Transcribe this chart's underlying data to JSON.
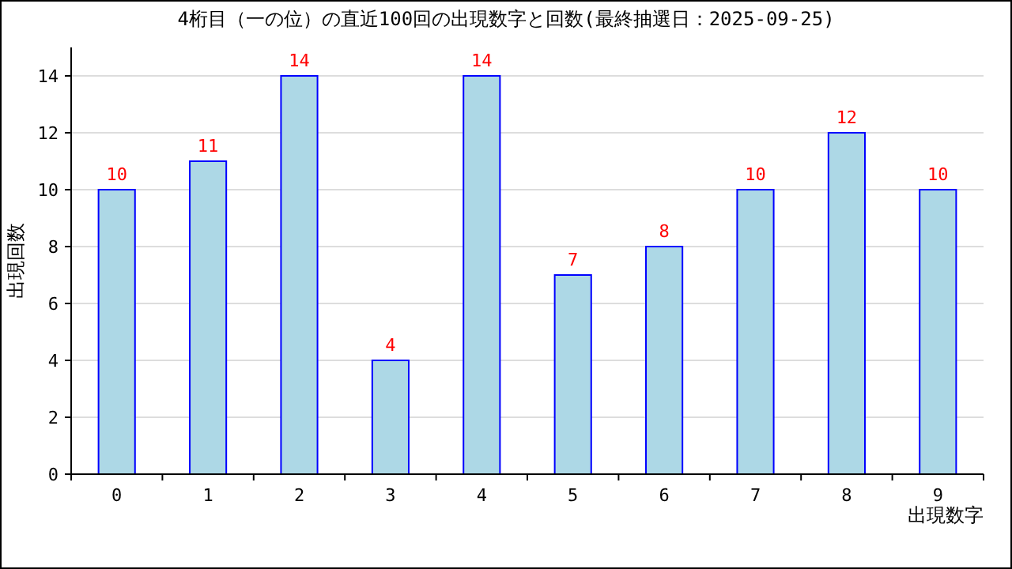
{
  "chart_data": {
    "type": "bar",
    "title": "4桁目（一の位）の直近100回の出現数字と回数(最終抽選日：2025-09-25)",
    "xlabel": "出現数字",
    "ylabel": "出現回数",
    "categories": [
      "0",
      "1",
      "2",
      "3",
      "4",
      "5",
      "6",
      "7",
      "8",
      "9"
    ],
    "values": [
      10,
      11,
      14,
      4,
      14,
      7,
      8,
      10,
      12,
      10
    ],
    "color": "#add8e6",
    "ylim": [
      0,
      15
    ],
    "yticks": [
      0,
      2,
      4,
      6,
      8,
      10,
      12,
      14
    ],
    "grid": "y",
    "data_labels": true
  }
}
